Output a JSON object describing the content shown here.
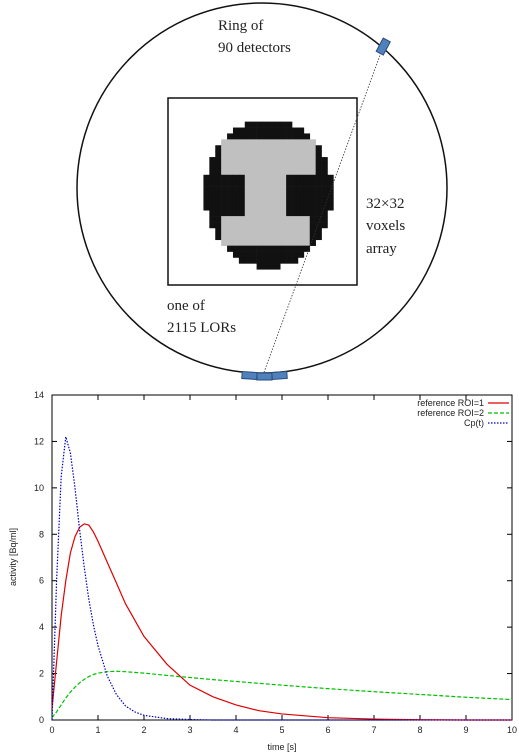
{
  "diagram": {
    "ring_label": [
      "Ring of",
      "90 detectors"
    ],
    "voxel_label": [
      "32×32",
      "voxels",
      "array"
    ],
    "lor_label": [
      "one of",
      "2115 LORs"
    ]
  },
  "chart_data": {
    "type": "line",
    "x_label": "time [s]",
    "y_label": "activity [Bq/ml]",
    "xlim": [
      0,
      10
    ],
    "ylim": [
      0,
      14
    ],
    "xticks": [
      0,
      1,
      2,
      3,
      4,
      5,
      6,
      7,
      8,
      9,
      10
    ],
    "yticks": [
      0,
      2,
      4,
      6,
      8,
      10,
      12,
      14
    ],
    "legend": "top-right",
    "x": [
      0,
      0.1,
      0.2,
      0.3,
      0.4,
      0.5,
      0.6,
      0.7,
      0.8,
      0.9,
      1,
      1.2,
      1.4,
      1.6,
      1.8,
      2,
      2.5,
      3,
      3.5,
      4,
      4.5,
      5,
      6,
      7,
      8,
      9,
      10
    ],
    "series": [
      {
        "name": "reference ROI=1",
        "color": "#e00000",
        "style": "solid",
        "values": [
          0.5,
          2.5,
          4.5,
          6.0,
          7.2,
          7.9,
          8.3,
          8.45,
          8.4,
          8.1,
          7.7,
          6.8,
          5.9,
          5.0,
          4.3,
          3.6,
          2.4,
          1.5,
          1.0,
          0.65,
          0.4,
          0.26,
          0.1,
          0.04,
          0.01,
          0,
          0
        ]
      },
      {
        "name": "reference ROI=2",
        "color": "#00c000",
        "style": "dashed",
        "values": [
          0.1,
          0.35,
          0.65,
          0.95,
          1.2,
          1.42,
          1.6,
          1.75,
          1.87,
          1.96,
          2.02,
          2.08,
          2.1,
          2.08,
          2.05,
          2.02,
          1.92,
          1.83,
          1.74,
          1.66,
          1.58,
          1.5,
          1.35,
          1.22,
          1.1,
          0.98,
          0.88
        ]
      },
      {
        "name": "Cp(t)",
        "color": "#0000c0",
        "style": "dotted",
        "values": [
          0,
          6,
          10.5,
          12.2,
          11.5,
          10,
          8.2,
          6.6,
          5.2,
          4.1,
          3.2,
          1.9,
          1.1,
          0.6,
          0.35,
          0.2,
          0.06,
          0.02,
          0,
          0,
          0,
          0,
          0,
          0,
          0,
          0,
          0
        ]
      }
    ]
  }
}
